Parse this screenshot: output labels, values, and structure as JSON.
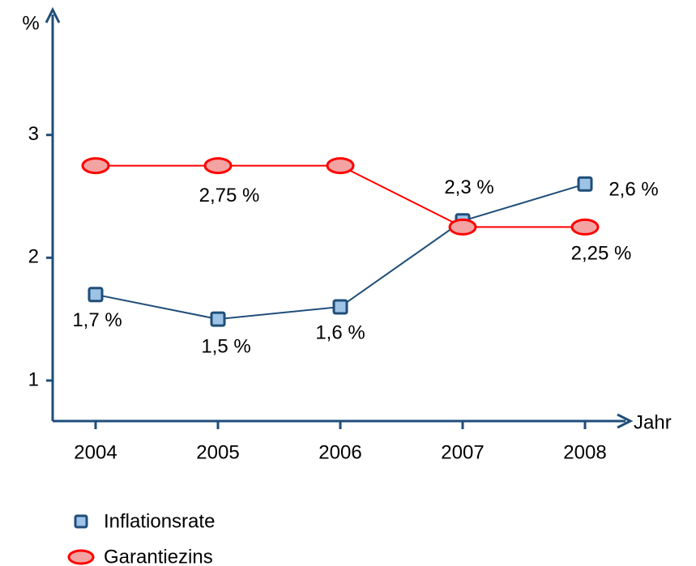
{
  "chart_data": {
    "type": "line",
    "categories": [
      "2004",
      "2005",
      "2006",
      "2007",
      "2008"
    ],
    "x_label": "Jahr",
    "y_label": "%",
    "ylim": [
      0.67,
      4
    ],
    "yticks": [
      1,
      2,
      3
    ],
    "series": [
      {
        "name": "Inflationsrate",
        "color": "#1f4e79",
        "marker_fill": "#9dc3e6",
        "values": [
          1.7,
          1.5,
          1.6,
          2.3,
          2.6
        ],
        "value_labels": [
          "1,7 %",
          "1,5 %",
          "1,6 %",
          "2,3 %",
          "2,6 %"
        ]
      },
      {
        "name": "Garantiezins",
        "color": "#ff0000",
        "marker_fill": "#f4a3a3",
        "values": [
          2.75,
          2.75,
          2.75,
          2.25,
          2.25
        ],
        "value_labels": [
          null,
          "2,75 %",
          null,
          null,
          "2,25 %"
        ]
      }
    ]
  }
}
